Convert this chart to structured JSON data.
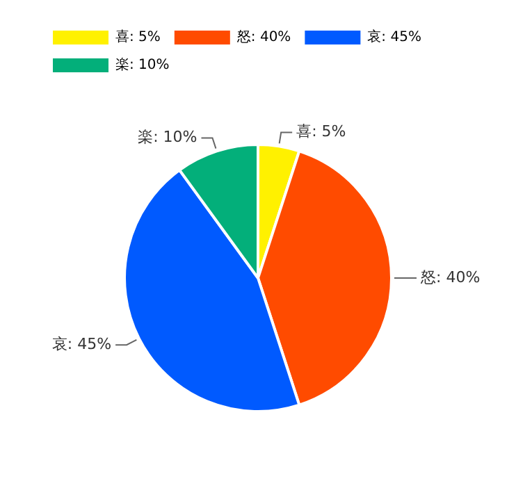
{
  "chart_data": {
    "type": "pie",
    "categories": [
      "喜",
      "怒",
      "哀",
      "楽"
    ],
    "values": [
      5,
      40,
      45,
      10
    ],
    "colors": [
      "#fff100",
      "#ff4b00",
      "#005aff",
      "#03af7a"
    ],
    "value_labels": [
      "5%",
      "40%",
      "45%",
      "10%"
    ],
    "legend": "top left"
  }
}
